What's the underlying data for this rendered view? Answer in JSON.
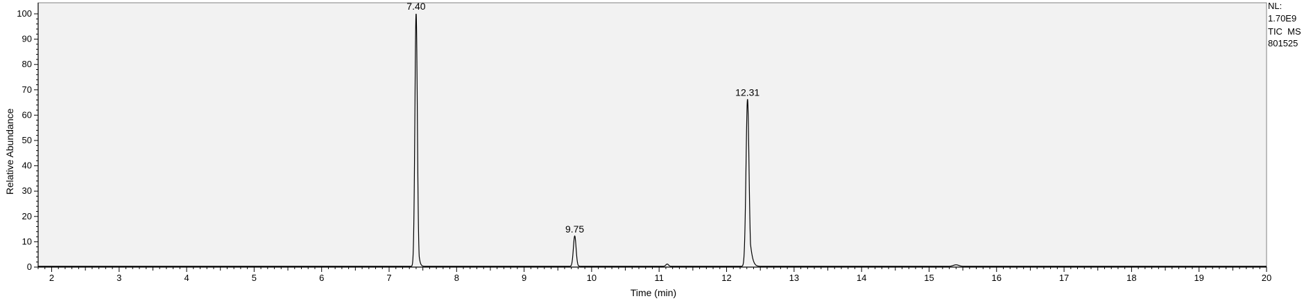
{
  "side_notes": {
    "nl_label": "NL:",
    "nl_value": "1.70E9",
    "trace_label": "TIC  MS",
    "sample_id": "801525"
  },
  "chart_data": {
    "type": "line",
    "title": "",
    "xlabel": "Time (min)",
    "ylabel": "Relative Abundance",
    "xlim": [
      1.8,
      20.0
    ],
    "ylim": [
      0,
      100
    ],
    "x_ticks": [
      2,
      3,
      4,
      5,
      6,
      7,
      8,
      9,
      10,
      11,
      12,
      13,
      14,
      15,
      16,
      17,
      18,
      19,
      20
    ],
    "y_ticks": [
      0,
      10,
      20,
      30,
      40,
      50,
      60,
      70,
      80,
      90,
      100
    ],
    "grid": false,
    "colors": {
      "line": "#000000",
      "plot_background": "#f2f2f2"
    },
    "peak_labels": [
      {
        "text": "7.40",
        "x": 7.4,
        "y": 100
      },
      {
        "text": "9.75",
        "x": 9.75,
        "y": 12
      },
      {
        "text": "12.31",
        "x": 12.31,
        "y": 66
      }
    ],
    "peaks": [
      {
        "x": 7.4,
        "height": 100,
        "width": 0.018,
        "tail": 0.025
      },
      {
        "x": 9.75,
        "height": 12,
        "width": 0.02,
        "tail": 0.02
      },
      {
        "x": 11.12,
        "height": 0.9,
        "width": 0.02,
        "tail": 0.01
      },
      {
        "x": 12.31,
        "height": 66,
        "width": 0.022,
        "tail": 0.06
      },
      {
        "x": 15.4,
        "height": 0.6,
        "width": 0.04,
        "tail": 0.02
      }
    ],
    "baseline": 0.3
  }
}
